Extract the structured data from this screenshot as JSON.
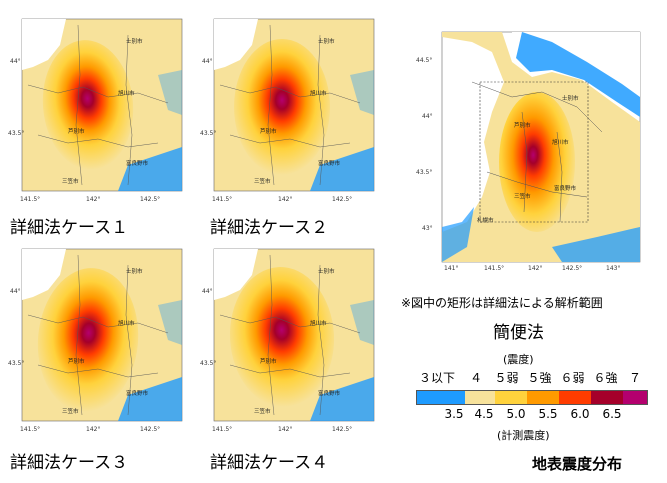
{
  "panels": [
    {
      "id": "case1",
      "label": "詳細法ケース１",
      "ticks_y": [
        "44°",
        "43.5°"
      ],
      "ticks_x": [
        "141.5°",
        "142°",
        "142.5°"
      ],
      "cities": [
        "士別市",
        "旭川市",
        "富良野市",
        "芦別市",
        "三笠市"
      ]
    },
    {
      "id": "case2",
      "label": "詳細法ケース２",
      "ticks_y": [
        "44°",
        "43.5°"
      ],
      "ticks_x": [
        "141.5°",
        "142°",
        "142.5°"
      ],
      "cities": [
        "士別市",
        "旭川市",
        "富良野市",
        "芦別市",
        "三笠市"
      ]
    },
    {
      "id": "case3",
      "label": "詳細法ケース３",
      "ticks_y": [
        "44°",
        "43.5°"
      ],
      "ticks_x": [
        "141.5°",
        "142°",
        "142.5°"
      ],
      "cities": [
        "士別市",
        "旭川市",
        "富良野市",
        "芦別市",
        "三笠市"
      ]
    },
    {
      "id": "case4",
      "label": "詳細法ケース４",
      "ticks_y": [
        "44°",
        "43.5°"
      ],
      "ticks_x": [
        "141.5°",
        "142°",
        "142.5°"
      ],
      "cities": [
        "士別市",
        "旭川市",
        "富良野市",
        "芦別市",
        "三笠市"
      ]
    }
  ],
  "simple_map": {
    "ticks_y": [
      "44.5°",
      "44°",
      "43.5°",
      "43°"
    ],
    "ticks_x": [
      "141°",
      "141.5°",
      "142°",
      "142.5°",
      "143°"
    ],
    "cities": [
      "士別市",
      "旭川市",
      "富良野市",
      "芦別市",
      "三笠市",
      "札幌市"
    ],
    "note": "※図中の矩形は詳細法による解析範囲",
    "title": "簡便法"
  },
  "legend": {
    "caption_top": "(震度)",
    "caption_bottom": "(計測震度)",
    "intensity_classes": [
      "３以下",
      "４",
      "５弱",
      "５強",
      "６弱",
      "６強",
      "７"
    ],
    "instrumental_values": [
      "3.5",
      "4.5",
      "5.0",
      "5.5",
      "6.0",
      "6.5"
    ],
    "colors": [
      "#1e9bff",
      "#f7e29b",
      "#ffd23c",
      "#ff9a00",
      "#ff3c00",
      "#a5002a",
      "#b4006e"
    ]
  },
  "figure_title": "地表震度分布"
}
